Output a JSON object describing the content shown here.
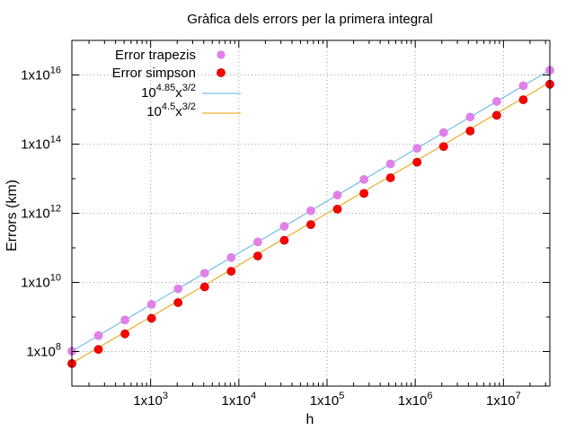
{
  "chart_data": {
    "type": "scatter",
    "title": "Gràfica dels errors per la primera integral",
    "xlabel": "h",
    "ylabel": "Errors (km)",
    "xscale": "log",
    "yscale": "log",
    "xlim": [
      128,
      33554432
    ],
    "ylim": [
      10000000,
      1e+17
    ],
    "grid": true,
    "legend_position": "top-left",
    "x_ticks": [
      {
        "value": 1000,
        "mantissa": "1x10",
        "exp": "3"
      },
      {
        "value": 10000,
        "mantissa": "1x10",
        "exp": "4"
      },
      {
        "value": 100000,
        "mantissa": "1x10",
        "exp": "5"
      },
      {
        "value": 1000000,
        "mantissa": "1x10",
        "exp": "6"
      },
      {
        "value": 10000000,
        "mantissa": "1x10",
        "exp": "7"
      }
    ],
    "y_ticks": [
      {
        "value": 100000000,
        "mantissa": "1x10",
        "exp": "8"
      },
      {
        "value": 10000000000,
        "mantissa": "1x10",
        "exp": "10"
      },
      {
        "value": 1000000000000,
        "mantissa": "1x10",
        "exp": "12"
      },
      {
        "value": 100000000000000,
        "mantissa": "1x10",
        "exp": "14"
      },
      {
        "value": 10000000000000000,
        "mantissa": "1x10",
        "exp": "16"
      }
    ],
    "x": [
      128,
      256,
      512,
      1024,
      2048,
      4096,
      8192,
      16384,
      32768,
      65536,
      131072,
      262144,
      524288,
      1048576,
      2097152,
      4194304,
      8388608,
      16777216,
      33554432
    ],
    "series": [
      {
        "name": "Error trapezis",
        "kind": "points",
        "color": "#e080e8",
        "values": [
          102000000,
          289000000,
          818000000,
          2310000000,
          6540000000,
          18500000000,
          52400000000,
          148000000000,
          419000000000,
          1180000000000,
          3350000000000,
          9480000000000,
          26800000000000,
          75900000000000,
          215000000000000,
          607000000000000,
          1720000000000000,
          4860000000000000,
          13700000000000000
        ]
      },
      {
        "name": "Error simpson",
        "kind": "points",
        "color": "#ff0000",
        "values": [
          45000000,
          115000000,
          325000000,
          910000000,
          2600000000,
          7400000000,
          21000000000,
          58000000000,
          165000000000,
          470000000000,
          1320000000000,
          3750000000000,
          10600000000000,
          30000000000000,
          85000000000000,
          240000000000000,
          680000000000000,
          1920000000000000,
          5400000000000000
        ]
      },
      {
        "name_base": "10",
        "name_exp1": "4.85",
        "name_var": "x",
        "name_exp2": "3/2",
        "kind": "line",
        "color": "#56b4e9",
        "coef_log10": 4.85,
        "power": 1.5
      },
      {
        "name_base": "10",
        "name_exp1": "4.5",
        "name_var": "x",
        "name_exp2": "3/2",
        "kind": "line",
        "color": "#e69f00",
        "coef_log10": 4.5,
        "power": 1.5
      }
    ]
  }
}
